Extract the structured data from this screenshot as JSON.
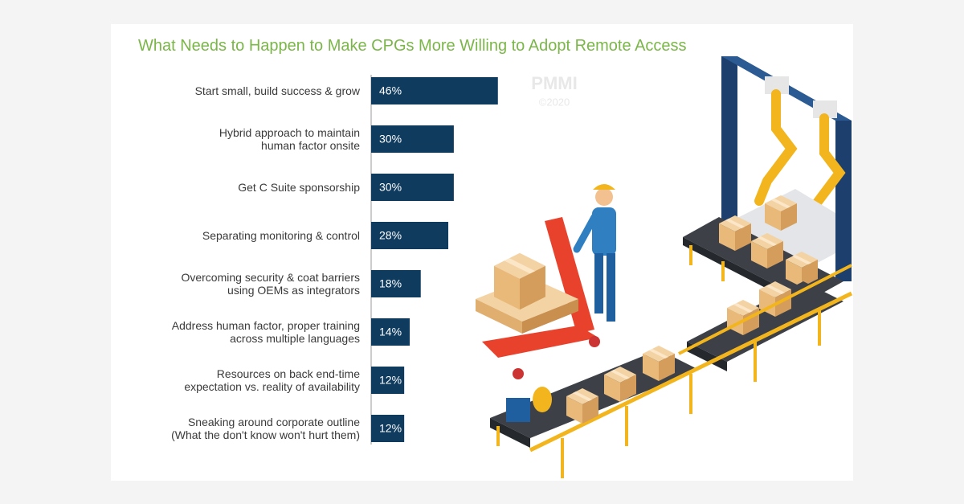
{
  "chart_data": {
    "type": "bar",
    "orientation": "horizontal",
    "title": "What Needs to Happen to Make CPGs More Willing to Adopt Remote Access",
    "watermark": "PMMI",
    "copyright": "©2020",
    "categories": [
      "Start small, build success & grow",
      "Hybrid approach to maintain\nhuman factor onsite",
      "Get C Suite sponsorship",
      "Separating monitoring & control",
      "Overcoming security & coat barriers\nusing OEMs as integrators",
      "Address human factor, proper training\nacross multiple languages",
      "Resources on back end-time\nexpectation vs. reality of availability",
      "Sneaking around corporate outline\n(What the don't know won't hurt them)"
    ],
    "values": [
      46,
      30,
      30,
      28,
      18,
      14,
      12,
      12
    ],
    "value_labels": [
      "46%",
      "30%",
      "30%",
      "28%",
      "18%",
      "14%",
      "12%",
      "12%"
    ],
    "color": "#0e3b5e"
  }
}
